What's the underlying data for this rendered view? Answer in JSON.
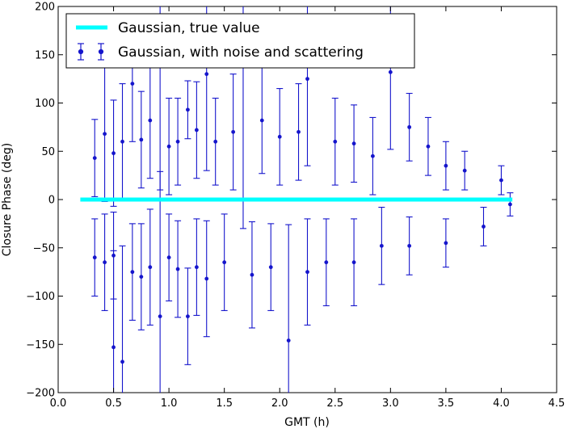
{
  "chart_data": {
    "type": "scatter",
    "title": "",
    "xlabel": "GMT (h)",
    "ylabel": "Closure Phase (deg)",
    "xlim": [
      0.0,
      4.5
    ],
    "ylim": [
      -200,
      200
    ],
    "xticks": [
      0.0,
      0.5,
      1.0,
      1.5,
      2.0,
      2.5,
      3.0,
      3.5,
      4.0,
      4.5
    ],
    "yticks": [
      -200,
      -150,
      -100,
      -50,
      0,
      50,
      100,
      150,
      200
    ],
    "xtick_labels": [
      "0.0",
      "0.5",
      "1.0",
      "1.5",
      "2.0",
      "2.5",
      "3.0",
      "3.5",
      "4.0",
      "4.5"
    ],
    "ytick_labels": [
      "−200",
      "−150",
      "−100",
      "−50",
      "0",
      "50",
      "100",
      "150",
      "200"
    ],
    "legend_position": "top-left",
    "grid": false,
    "colors": {
      "true_line": "#00ffff",
      "noisy": "#1515cc"
    },
    "series": [
      {
        "name": "Gaussian, true value",
        "style": "line",
        "x": [
          0.2,
          4.1
        ],
        "y": [
          0,
          0
        ]
      },
      {
        "name": "Gaussian, with noise and scattering",
        "style": "errorbar",
        "points": [
          {
            "x": 0.5,
            "y": -153,
            "err": 100
          },
          {
            "x": 0.58,
            "y": -168,
            "err": 120
          },
          {
            "x": 0.92,
            "y": -121,
            "err": 150
          },
          {
            "x": 1.17,
            "y": -121,
            "err": 50
          },
          {
            "x": 2.08,
            "y": -146,
            "err": 120
          },
          {
            "x": 0.67,
            "y": 120,
            "err": 60
          },
          {
            "x": 0.92,
            "y": 160,
            "err": 150
          },
          {
            "x": 1.34,
            "y": 130,
            "err": 100
          },
          {
            "x": 1.67,
            "y": 170,
            "err": 200
          },
          {
            "x": 2.25,
            "y": 125,
            "err": 90
          },
          {
            "x": 3.0,
            "y": 132,
            "err": 80
          },
          {
            "x": 1.17,
            "y": 93,
            "err": 30
          },
          {
            "x": 0.33,
            "y": 43,
            "err": 40
          },
          {
            "x": 0.33,
            "y": -60,
            "err": 40
          },
          {
            "x": 0.42,
            "y": 68,
            "err": 70
          },
          {
            "x": 0.42,
            "y": -65,
            "err": 50
          },
          {
            "x": 0.5,
            "y": 48,
            "err": 55
          },
          {
            "x": 0.5,
            "y": -58,
            "err": 45
          },
          {
            "x": 0.58,
            "y": 60,
            "err": 60
          },
          {
            "x": 0.67,
            "y": -75,
            "err": 50
          },
          {
            "x": 0.75,
            "y": 62,
            "err": 50
          },
          {
            "x": 0.75,
            "y": -80,
            "err": 55
          },
          {
            "x": 0.83,
            "y": 82,
            "err": 60
          },
          {
            "x": 0.83,
            "y": -70,
            "err": 60
          },
          {
            "x": 1.0,
            "y": 55,
            "err": 50
          },
          {
            "x": 1.0,
            "y": -60,
            "err": 45
          },
          {
            "x": 1.08,
            "y": 60,
            "err": 45
          },
          {
            "x": 1.08,
            "y": -72,
            "err": 50
          },
          {
            "x": 1.25,
            "y": 72,
            "err": 50
          },
          {
            "x": 1.25,
            "y": -70,
            "err": 50
          },
          {
            "x": 1.34,
            "y": -82,
            "err": 60
          },
          {
            "x": 1.42,
            "y": 60,
            "err": 45
          },
          {
            "x": 1.5,
            "y": -65,
            "err": 50
          },
          {
            "x": 1.58,
            "y": 70,
            "err": 60
          },
          {
            "x": 1.75,
            "y": -78,
            "err": 55
          },
          {
            "x": 1.84,
            "y": 82,
            "err": 55
          },
          {
            "x": 1.92,
            "y": -70,
            "err": 45
          },
          {
            "x": 2.0,
            "y": 65,
            "err": 50
          },
          {
            "x": 2.17,
            "y": 70,
            "err": 50
          },
          {
            "x": 2.25,
            "y": -75,
            "err": 55
          },
          {
            "x": 2.42,
            "y": -65,
            "err": 45
          },
          {
            "x": 2.5,
            "y": 60,
            "err": 45
          },
          {
            "x": 2.67,
            "y": 58,
            "err": 40
          },
          {
            "x": 2.67,
            "y": -65,
            "err": 45
          },
          {
            "x": 2.84,
            "y": 45,
            "err": 40
          },
          {
            "x": 2.92,
            "y": -48,
            "err": 40
          },
          {
            "x": 3.17,
            "y": 75,
            "err": 35
          },
          {
            "x": 3.17,
            "y": -48,
            "err": 30
          },
          {
            "x": 3.34,
            "y": 55,
            "err": 30
          },
          {
            "x": 3.5,
            "y": -45,
            "err": 25
          },
          {
            "x": 3.5,
            "y": 35,
            "err": 25
          },
          {
            "x": 3.67,
            "y": 30,
            "err": 20
          },
          {
            "x": 3.84,
            "y": -28,
            "err": 20
          },
          {
            "x": 4.0,
            "y": 20,
            "err": 15
          },
          {
            "x": 4.08,
            "y": -5,
            "err": 12
          }
        ]
      }
    ]
  }
}
